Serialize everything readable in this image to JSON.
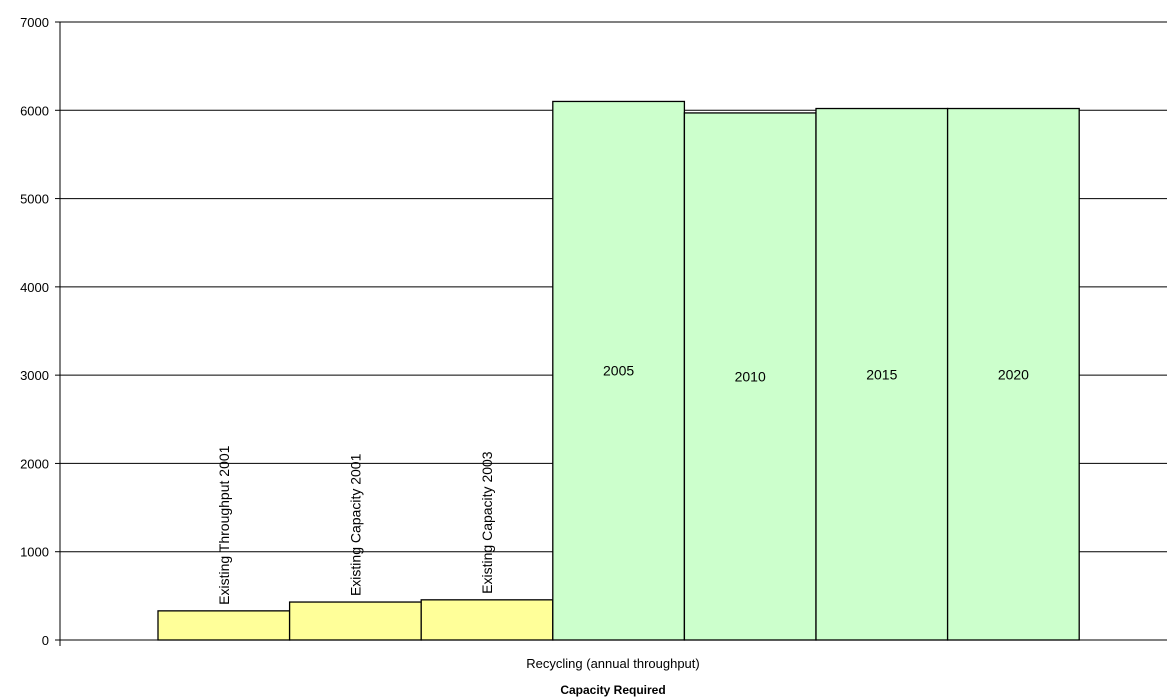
{
  "chart_data": {
    "type": "bar",
    "categories": [
      "Existing Throughput 2001",
      "Existing Capacity 2001",
      "Existing Capacity 2003",
      "2005",
      "2010",
      "2015",
      "2020"
    ],
    "values": [
      330,
      430,
      455,
      6100,
      5970,
      6020,
      6020
    ],
    "colors": [
      "#ffff99",
      "#ffff99",
      "#ffff99",
      "#ccffcc",
      "#ccffcc",
      "#ccffcc",
      "#ccffcc"
    ],
    "label_orientation": [
      "vertical",
      "vertical",
      "vertical",
      "horizontal",
      "horizontal",
      "horizontal",
      "horizontal"
    ],
    "xlabel": "Recycling (annual throughput)",
    "subtitle": "Capacity Required",
    "ylim": [
      0,
      7000
    ],
    "yticks": [
      0,
      1000,
      2000,
      3000,
      4000,
      5000,
      6000,
      7000
    ],
    "grid": true,
    "legend": "none"
  }
}
